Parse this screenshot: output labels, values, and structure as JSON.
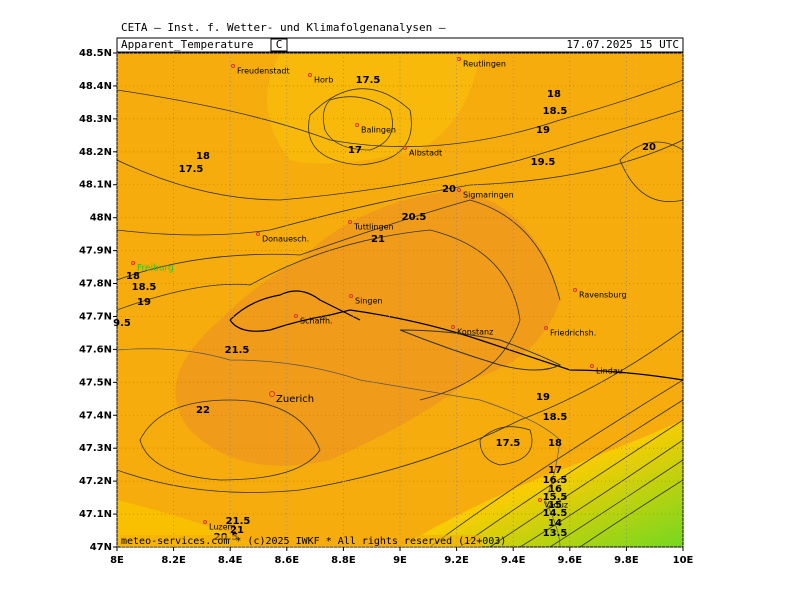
{
  "header": {
    "title": "CETA — Inst. f. Wetter- und Klimafolgenanalysen —",
    "variable": "Apparent_Temperature",
    "unit": "C",
    "time": "17.07.2025 15 UTC"
  },
  "map": {
    "xlim": [
      8,
      10
    ],
    "ylim": [
      47,
      48.5
    ],
    "xticks": [
      {
        "value": 8,
        "label": "8E"
      },
      {
        "value": 8.2,
        "label": "8.2E"
      },
      {
        "value": 8.4,
        "label": "8.4E"
      },
      {
        "value": 8.6,
        "label": "8.6E"
      },
      {
        "value": 8.8,
        "label": "8.8E"
      },
      {
        "value": 9,
        "label": "9E"
      },
      {
        "value": 9.2,
        "label": "9.2E"
      },
      {
        "value": 9.4,
        "label": "9.4E"
      },
      {
        "value": 9.6,
        "label": "9.6E"
      },
      {
        "value": 9.8,
        "label": "9.8E"
      },
      {
        "value": 10,
        "label": "10E"
      }
    ],
    "yticks": [
      {
        "value": 47,
        "label": "47N"
      },
      {
        "value": 47.1,
        "label": "47.1N"
      },
      {
        "value": 47.2,
        "label": "47.2N"
      },
      {
        "value": 47.3,
        "label": "47.3N"
      },
      {
        "value": 47.4,
        "label": "47.4N"
      },
      {
        "value": 47.5,
        "label": "47.5N"
      },
      {
        "value": 47.6,
        "label": "47.6N"
      },
      {
        "value": 47.7,
        "label": "47.7N"
      },
      {
        "value": 47.8,
        "label": "47.8N"
      },
      {
        "value": 47.9,
        "label": "47.9N"
      },
      {
        "value": 48,
        "label": "48N"
      },
      {
        "value": 48.1,
        "label": "48.1N"
      },
      {
        "value": 48.2,
        "label": "48.2N"
      },
      {
        "value": 48.3,
        "label": "48.3N"
      },
      {
        "value": 48.4,
        "label": "48.4N"
      },
      {
        "value": 48.5,
        "label": "48.5N"
      }
    ],
    "cities": [
      "Freudenstadt",
      "Horb",
      "Reutlingen",
      "Balingen",
      "Albstadt",
      "Sigmaringen",
      "Tuttlingen",
      "Donauesch.",
      "Freiburg",
      "Singen",
      "Schaffh.",
      "Konstanz",
      "Friedrichsh.",
      "Ravensburg",
      "Lindau",
      "Zuerich",
      "Vaduz",
      "Luzern"
    ],
    "contour_labels": [
      17.5,
      18,
      18.5,
      19,
      17,
      18,
      17.5,
      19.5,
      20,
      20,
      20.5,
      21,
      18,
      18.5,
      19,
      9.5,
      21.5,
      22,
      19,
      18.5,
      17.5,
      18,
      17,
      16.5,
      16,
      15.5,
      15,
      14.5,
      14,
      13.5,
      21.5,
      21,
      20.5
    ]
  },
  "footer": "meteo-services.com * (c)2025 IWKF * All rights reserved (12+003)"
}
